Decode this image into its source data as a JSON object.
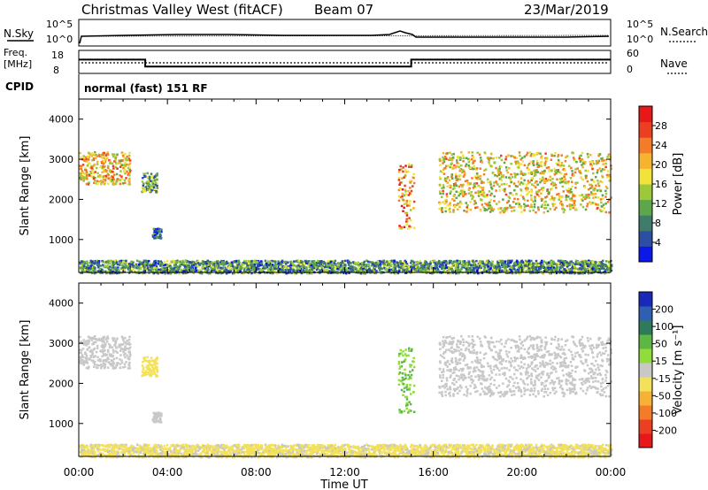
{
  "header": {
    "station": "Christmas Valley West (fitACF)",
    "beam": "Beam 07",
    "date": "23/Mar/2019"
  },
  "noise_panel": {
    "left_label": "N.Sky",
    "right_label": "N.Search",
    "tick_top": "10^5",
    "tick_bottom": "10^0"
  },
  "freq_panel": {
    "left_label_1": "Freq.",
    "left_label_2": "[MHz]",
    "tick_top": "18",
    "tick_bottom": "8",
    "right_label": "Nave",
    "right_tick_top": "60",
    "right_tick_bottom": "0"
  },
  "cpid": {
    "label": "CPID",
    "program": "normal (fast) 151 RF"
  },
  "axes": {
    "ylabel": "Slant Range [km]",
    "xlabel": "Time UT",
    "x_ticks": [
      "00:00",
      "04:00",
      "08:00",
      "12:00",
      "16:00",
      "20:00",
      "00:00"
    ],
    "y_ticks": [
      "1000",
      "2000",
      "3000",
      "4000"
    ]
  },
  "power_colorbar": {
    "label": "Power [dB]",
    "ticks": [
      "4",
      "8",
      "12",
      "16",
      "20",
      "24",
      "28"
    ],
    "colors": [
      "#0b18e8",
      "#2c4fa5",
      "#3f7d6a",
      "#5da64a",
      "#9cc93a",
      "#f2e33b",
      "#f7b330",
      "#f47b27",
      "#ec3f22",
      "#e81818"
    ]
  },
  "velocity_colorbar": {
    "label": "Velocity [m s⁻¹]",
    "ticks": [
      "200",
      "100",
      "50",
      "15",
      "-15",
      "-50",
      "-100",
      "-200"
    ],
    "colors": [
      "#1a2ab8",
      "#2f5fb0",
      "#2f7a5a",
      "#5db843",
      "#8fdc3a",
      "#c8c8c8",
      "#f3e15a",
      "#f6b237",
      "#f47b27",
      "#ec3f22",
      "#e8181a"
    ]
  },
  "chart_data": {
    "type": "heatmap",
    "title": "Christmas Valley West (fitACF)",
    "xlabel": "Time UT",
    "ylabel": "Slant Range [km]",
    "xlim": [
      0,
      24
    ],
    "ylim": [
      180,
      4500
    ],
    "frequency_MHz": [
      {
        "from": 0,
        "to": 3,
        "value": 14
      },
      {
        "from": 3,
        "to": 15,
        "value": 11
      },
      {
        "from": 15,
        "to": 24,
        "value": 14
      }
    ],
    "echo_regions": [
      {
        "start_h": 0.0,
        "end_h": 2.3,
        "range_low_km": 2400,
        "range_high_km": 3200,
        "power_dB": 20,
        "velocity_ms": 0
      },
      {
        "start_h": 2.8,
        "end_h": 3.5,
        "range_low_km": 2200,
        "range_high_km": 2700,
        "power_dB": 12,
        "velocity_ms": -40
      },
      {
        "start_h": 3.3,
        "end_h": 3.7,
        "range_low_km": 1050,
        "range_high_km": 1300,
        "power_dB": 6,
        "velocity_ms": 0
      },
      {
        "start_h": 14.4,
        "end_h": 15.1,
        "range_low_km": 1300,
        "range_high_km": 2900,
        "power_dB": 22,
        "velocity_ms": 60
      },
      {
        "start_h": 16.2,
        "end_h": 24.0,
        "range_low_km": 1700,
        "range_high_km": 3200,
        "power_dB": 18,
        "velocity_ms": 0
      },
      {
        "start_h": 0.0,
        "end_h": 24.0,
        "range_low_km": 180,
        "range_high_km": 500,
        "power_dB": 10,
        "velocity_ms": -30
      }
    ]
  }
}
